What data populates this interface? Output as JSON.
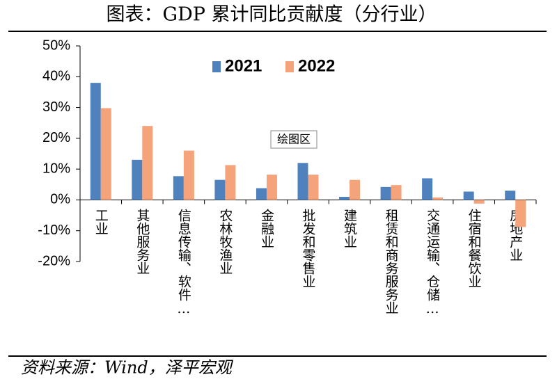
{
  "chart_data": {
    "type": "bar",
    "title": "图表：GDP 累计同比贡献度（分行业）",
    "source": "资料来源：Wind，泽平宏观",
    "annotation": "绘图区",
    "categories": [
      "工业",
      "其他服务业",
      "信息传输、软件…",
      "农林牧渔业",
      "金融业",
      "批发和零售业",
      "建筑业",
      "租赁和商务服务业",
      "交通运输、仓储…",
      "住宿和餐饮业",
      "房地产业"
    ],
    "series": [
      {
        "name": "2021",
        "color": "#4f81bd",
        "values": [
          38,
          13,
          7.7,
          6.5,
          3.8,
          12,
          1,
          4.2,
          7,
          2.7,
          3
        ]
      },
      {
        "name": "2022",
        "color": "#f5a37a",
        "values": [
          29.8,
          24,
          16,
          11.3,
          8.2,
          8.2,
          6.5,
          4.8,
          0.8,
          -1.2,
          -8.8
        ]
      }
    ],
    "ylim": [
      -20,
      50
    ],
    "yticks": [
      {
        "value": -20,
        "label": "-20%"
      },
      {
        "value": -10,
        "label": "-10%"
      },
      {
        "value": 0,
        "label": "0%"
      },
      {
        "value": 10,
        "label": "10%"
      },
      {
        "value": 20,
        "label": "20%"
      },
      {
        "value": 30,
        "label": "30%"
      },
      {
        "value": 40,
        "label": "40%"
      },
      {
        "value": 50,
        "label": "50%"
      }
    ],
    "legend": "top",
    "grid": false
  }
}
